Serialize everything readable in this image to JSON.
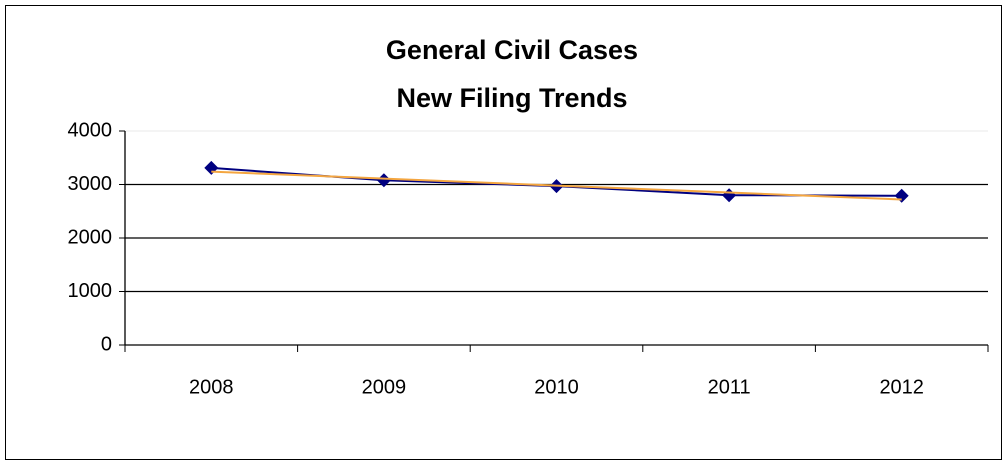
{
  "chart_data": {
    "type": "line",
    "title": [
      "General Civil Cases",
      "New Filing Trends"
    ],
    "categories": [
      "2008",
      "2009",
      "2010",
      "2011",
      "2012"
    ],
    "series": [
      {
        "color": "#000080",
        "marker": "diamond",
        "values": [
          3310,
          3080,
          2970,
          2800,
          2790
        ]
      },
      {
        "color": "#f4a640",
        "marker": "none",
        "values": [
          3240,
          3110,
          2980,
          2850,
          2720
        ]
      }
    ],
    "ylim": [
      0,
      4000
    ],
    "yticks": [
      0,
      1000,
      2000,
      3000,
      4000
    ],
    "grid": true
  }
}
